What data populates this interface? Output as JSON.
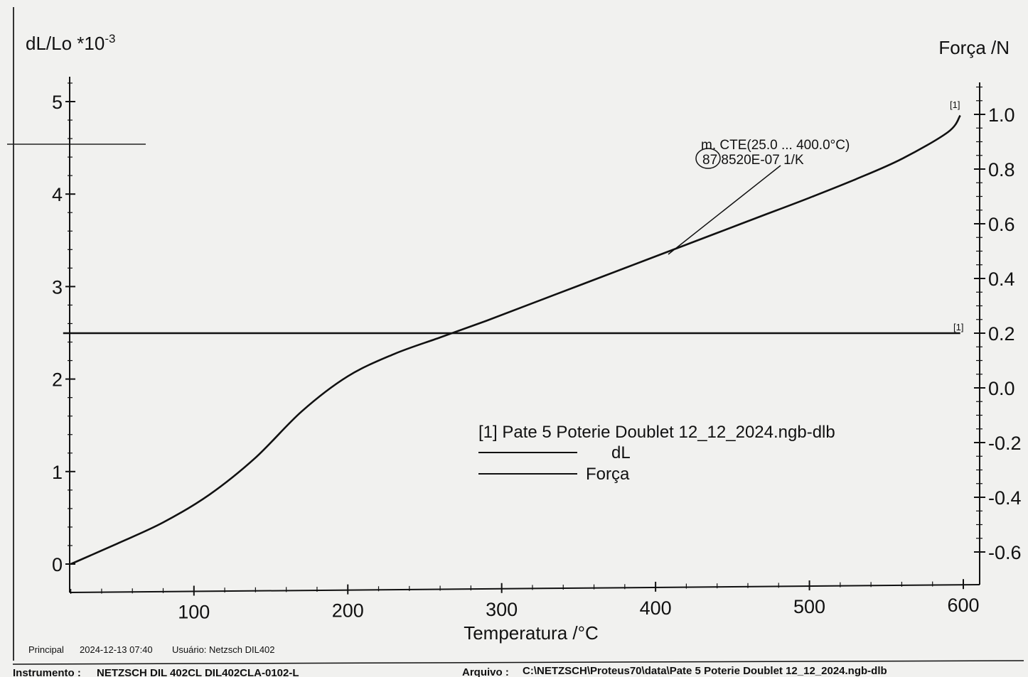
{
  "chart_data": {
    "type": "line",
    "xlabel": "Temperatura /°C",
    "ylabel_left": "dL/Lo *10",
    "ylabel_left_exp": "-3",
    "ylabel_right": "Força /N",
    "xlim": [
      10,
      600
    ],
    "ylim_left": [
      -0.3,
      5.3
    ],
    "ylim_right": [
      -0.7,
      1.1
    ],
    "x_ticks": [
      "100",
      "200",
      "300",
      "400",
      "500",
      "600"
    ],
    "y_left_ticks": [
      "0",
      "1",
      "2",
      "3",
      "4",
      "5"
    ],
    "y_right_ticks": [
      "-0.6",
      "-0.4",
      "-0.2",
      "0.0",
      "0.2",
      "0.4",
      "0.6",
      "0.8",
      "1.0"
    ],
    "series": [
      {
        "name": "dL",
        "axis": "left",
        "x": [
          20,
          50,
          80,
          110,
          140,
          170,
          200,
          230,
          260,
          290,
          320,
          350,
          380,
          410,
          440,
          470,
          500,
          530,
          560,
          590,
          598
        ],
        "y": [
          0.0,
          0.22,
          0.45,
          0.75,
          1.15,
          1.65,
          2.03,
          2.27,
          2.45,
          2.63,
          2.82,
          3.01,
          3.2,
          3.39,
          3.58,
          3.77,
          3.96,
          4.16,
          4.38,
          4.67,
          4.85
        ]
      },
      {
        "name": "Força",
        "axis": "right",
        "x": [
          15,
          598
        ],
        "y": [
          0.2,
          0.2
        ]
      }
    ],
    "curve_markers": [
      "[1]",
      "[1]"
    ],
    "annotation": {
      "line1": "m. CTE(25.0 ... 400.0°C)",
      "line2": "87 8520E-07 1/K",
      "circled": "87",
      "anchor_x": 400,
      "anchor_y": 3.4
    },
    "legend": {
      "title": "[1]  Pate 5  Poterie Doublet  12_12_2024.ngb-dlb",
      "entries": [
        "dL",
        "Força"
      ]
    },
    "grid": false
  },
  "footer": {
    "principal": "Principal",
    "datetime": "2024-12-13 07:40",
    "user": "Usuário: Netzsch DIL402",
    "instrument_label": "Instrumento :",
    "instrument_value": "NETZSCH DIL 402CL DIL402CLA-0102-L",
    "file_label": "Arquivo :",
    "file_value": "C:\\NETZSCH\\Proteus70\\data\\Pate 5  Poterie Doublet  12_12_2024.ngb-dlb"
  }
}
